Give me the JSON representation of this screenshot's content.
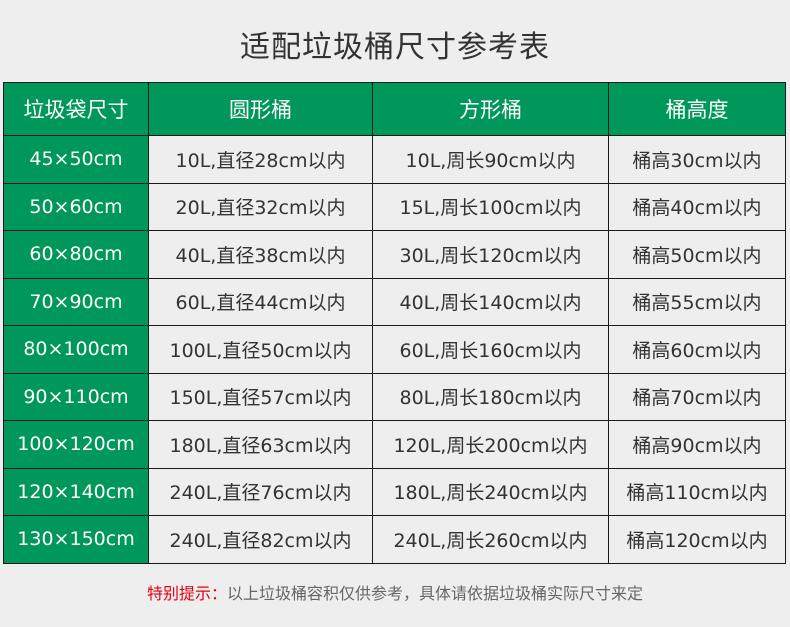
{
  "title": "适配垃圾桶尺寸参考表",
  "colors": {
    "header_bg": "#00985a",
    "note_highlight": "#e60012",
    "background": "#eeeeee"
  },
  "table": {
    "headers": [
      "垃圾袋尺寸",
      "圆形桶",
      "方形桶",
      "桶高度"
    ],
    "rows": [
      [
        "45×50cm",
        "10L,直径28cm以内",
        "10L,周长90cm以内",
        "桶高30cm以内"
      ],
      [
        "50×60cm",
        "20L,直径32cm以内",
        "15L,周长100cm以内",
        "桶高40cm以内"
      ],
      [
        "60×80cm",
        "40L,直径38cm以内",
        "30L,周长120cm以内",
        "桶高50cm以内"
      ],
      [
        "70×90cm",
        "60L,直径44cm以内",
        "40L,周长140cm以内",
        "桶高55cm以内"
      ],
      [
        "80×100cm",
        "100L,直径50cm以内",
        "60L,周长160cm以内",
        "桶高60cm以内"
      ],
      [
        "90×110cm",
        "150L,直径57cm以内",
        "80L,周长180cm以内",
        "桶高70cm以内"
      ],
      [
        "100×120cm",
        "180L,直径63cm以内",
        "120L,周长200cm以内",
        "桶高90cm以内"
      ],
      [
        "120×140cm",
        "240L,直径76cm以内",
        "180L,周长240cm以内",
        "桶高110cm以内"
      ],
      [
        "130×150cm",
        "240L,直径82cm以内",
        "240L,周长260cm以内",
        "桶高120cm以内"
      ]
    ]
  },
  "note": {
    "label": "特别提示：",
    "text": "以上垃圾桶容积仅供参考，具体请依据垃圾桶实际尺寸来定"
  }
}
